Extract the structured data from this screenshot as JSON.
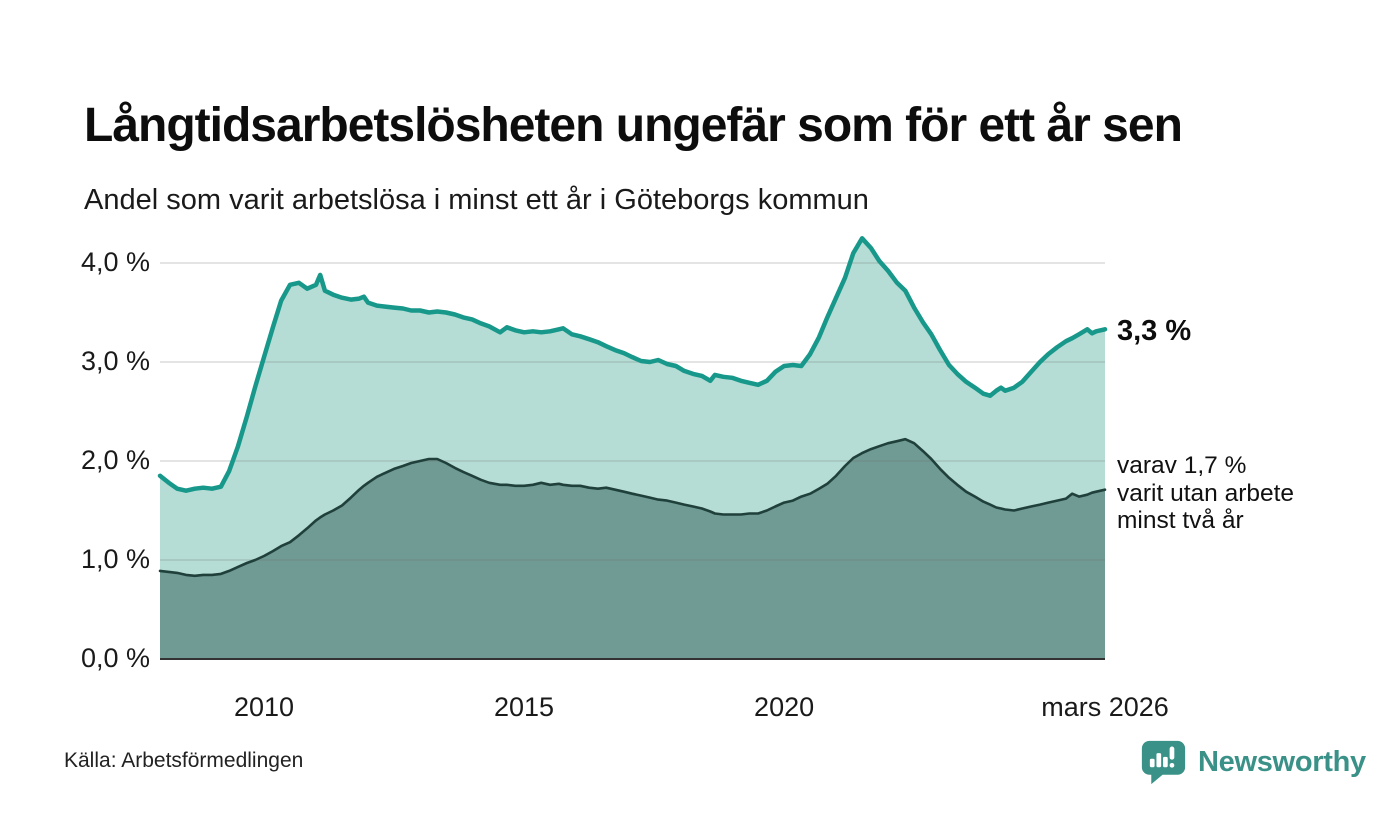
{
  "header": {
    "title": "Långtidsarbetslösheten ungefär som för ett år sen",
    "subtitle": "Andel som varit arbetslösa i minst ett år i Göteborgs kommun"
  },
  "chart_data": {
    "type": "area",
    "title": "Långtidsarbetslösheten ungefär som för ett år sen",
    "subtitle": "Andel som varit arbetslösa i minst ett år i Göteborgs kommun",
    "unit": "%",
    "grid": true,
    "legend": "none",
    "x_axis": {
      "min_year": 2008.0,
      "max_year": 2026.17,
      "ticks": [
        {
          "label": "2010",
          "year": 2010
        },
        {
          "label": "2015",
          "year": 2015
        },
        {
          "label": "2020",
          "year": 2020
        },
        {
          "label": "mars 2026",
          "year": 2026.17
        }
      ]
    },
    "y_axis": {
      "ylim": [
        0,
        4.4
      ],
      "ticks": [
        {
          "label": "0,0 %",
          "value": 0
        },
        {
          "label": "1,0 %",
          "value": 1
        },
        {
          "label": "2,0 %",
          "value": 2
        },
        {
          "label": "3,0 %",
          "value": 3
        },
        {
          "label": "4,0 %",
          "value": 4
        }
      ]
    },
    "series": [
      {
        "id": "arbetslosa-minst-ett-ar",
        "value_index": 1,
        "line_color": "#17988a",
        "fill_color": "#b5dcd5",
        "latest_value": "3,3 %"
      },
      {
        "id": "arbetslosa-minst-tva-ar",
        "value_index": 2,
        "line_color": "#20403c",
        "fill_color": "#6f9b94",
        "latest_value": "1,7 %"
      }
    ],
    "gridline_color": "rgba(110,110,110,0.25)",
    "baseline_color": "#333333",
    "points": [
      [
        2008.0,
        1.85,
        0.89
      ],
      [
        2008.17,
        1.78,
        0.88
      ],
      [
        2008.33,
        1.72,
        0.87
      ],
      [
        2008.5,
        1.7,
        0.85
      ],
      [
        2008.67,
        1.72,
        0.84
      ],
      [
        2008.83,
        1.73,
        0.85
      ],
      [
        2009.0,
        1.72,
        0.85
      ],
      [
        2009.17,
        1.74,
        0.86
      ],
      [
        2009.33,
        1.9,
        0.89
      ],
      [
        2009.5,
        2.15,
        0.93
      ],
      [
        2009.67,
        2.45,
        0.97
      ],
      [
        2009.83,
        2.75,
        1.0
      ],
      [
        2010.0,
        3.05,
        1.04
      ],
      [
        2010.17,
        3.35,
        1.09
      ],
      [
        2010.33,
        3.62,
        1.14
      ],
      [
        2010.5,
        3.78,
        1.18
      ],
      [
        2010.67,
        3.8,
        1.25
      ],
      [
        2010.83,
        3.74,
        1.32
      ],
      [
        2011.0,
        3.78,
        1.4
      ],
      [
        2011.08,
        3.88,
        1.43
      ],
      [
        2011.17,
        3.72,
        1.46
      ],
      [
        2011.33,
        3.68,
        1.5
      ],
      [
        2011.5,
        3.65,
        1.55
      ],
      [
        2011.67,
        3.63,
        1.63
      ],
      [
        2011.83,
        3.64,
        1.71
      ],
      [
        2011.92,
        3.66,
        1.75
      ],
      [
        2012.0,
        3.6,
        1.78
      ],
      [
        2012.17,
        3.57,
        1.84
      ],
      [
        2012.33,
        3.56,
        1.88
      ],
      [
        2012.5,
        3.55,
        1.92
      ],
      [
        2012.67,
        3.54,
        1.95
      ],
      [
        2012.83,
        3.52,
        1.98
      ],
      [
        2013.0,
        3.52,
        2.0
      ],
      [
        2013.17,
        3.5,
        2.02
      ],
      [
        2013.33,
        3.51,
        2.02
      ],
      [
        2013.5,
        3.5,
        1.98
      ],
      [
        2013.67,
        3.48,
        1.93
      ],
      [
        2013.83,
        3.45,
        1.89
      ],
      [
        2014.0,
        3.43,
        1.85
      ],
      [
        2014.17,
        3.39,
        1.81
      ],
      [
        2014.33,
        3.36,
        1.78
      ],
      [
        2014.54,
        3.3,
        1.76
      ],
      [
        2014.67,
        3.35,
        1.76
      ],
      [
        2014.83,
        3.32,
        1.75
      ],
      [
        2015.0,
        3.3,
        1.75
      ],
      [
        2015.17,
        3.31,
        1.76
      ],
      [
        2015.33,
        3.3,
        1.78
      ],
      [
        2015.5,
        3.31,
        1.76
      ],
      [
        2015.67,
        3.33,
        1.77
      ],
      [
        2015.75,
        3.34,
        1.76
      ],
      [
        2015.92,
        3.28,
        1.75
      ],
      [
        2016.08,
        3.26,
        1.75
      ],
      [
        2016.25,
        3.23,
        1.73
      ],
      [
        2016.42,
        3.2,
        1.72
      ],
      [
        2016.58,
        3.16,
        1.73
      ],
      [
        2016.75,
        3.12,
        1.71
      ],
      [
        2016.92,
        3.09,
        1.69
      ],
      [
        2017.08,
        3.05,
        1.67
      ],
      [
        2017.25,
        3.01,
        1.65
      ],
      [
        2017.42,
        3.0,
        1.63
      ],
      [
        2017.58,
        3.02,
        1.61
      ],
      [
        2017.75,
        2.98,
        1.6
      ],
      [
        2017.92,
        2.96,
        1.58
      ],
      [
        2018.08,
        2.91,
        1.56
      ],
      [
        2018.25,
        2.88,
        1.54
      ],
      [
        2018.42,
        2.86,
        1.52
      ],
      [
        2018.58,
        2.81,
        1.49
      ],
      [
        2018.67,
        2.87,
        1.47
      ],
      [
        2018.83,
        2.85,
        1.46
      ],
      [
        2019.0,
        2.84,
        1.46
      ],
      [
        2019.17,
        2.81,
        1.46
      ],
      [
        2019.33,
        2.79,
        1.47
      ],
      [
        2019.5,
        2.77,
        1.47
      ],
      [
        2019.67,
        2.81,
        1.5
      ],
      [
        2019.83,
        2.9,
        1.54
      ],
      [
        2020.0,
        2.96,
        1.58
      ],
      [
        2020.17,
        2.97,
        1.6
      ],
      [
        2020.33,
        2.96,
        1.64
      ],
      [
        2020.5,
        3.08,
        1.67
      ],
      [
        2020.67,
        3.25,
        1.72
      ],
      [
        2020.83,
        3.45,
        1.77
      ],
      [
        2021.0,
        3.65,
        1.85
      ],
      [
        2021.17,
        3.85,
        1.95
      ],
      [
        2021.33,
        4.1,
        2.03
      ],
      [
        2021.5,
        4.25,
        2.08
      ],
      [
        2021.67,
        4.15,
        2.12
      ],
      [
        2021.83,
        4.02,
        2.15
      ],
      [
        2022.0,
        3.92,
        2.18
      ],
      [
        2022.17,
        3.8,
        2.2
      ],
      [
        2022.33,
        3.72,
        2.22
      ],
      [
        2022.5,
        3.55,
        2.18
      ],
      [
        2022.67,
        3.4,
        2.1
      ],
      [
        2022.83,
        3.28,
        2.02
      ],
      [
        2023.0,
        3.12,
        1.92
      ],
      [
        2023.17,
        2.97,
        1.83
      ],
      [
        2023.33,
        2.88,
        1.76
      ],
      [
        2023.5,
        2.8,
        1.69
      ],
      [
        2023.67,
        2.74,
        1.64
      ],
      [
        2023.83,
        2.68,
        1.59
      ],
      [
        2023.96,
        2.66,
        1.56
      ],
      [
        2024.08,
        2.71,
        1.53
      ],
      [
        2024.17,
        2.74,
        1.52
      ],
      [
        2024.25,
        2.71,
        1.51
      ],
      [
        2024.42,
        2.74,
        1.5
      ],
      [
        2024.58,
        2.8,
        1.52
      ],
      [
        2024.75,
        2.9,
        1.54
      ],
      [
        2024.92,
        3.0,
        1.56
      ],
      [
        2025.08,
        3.08,
        1.58
      ],
      [
        2025.25,
        3.15,
        1.6
      ],
      [
        2025.42,
        3.21,
        1.62
      ],
      [
        2025.54,
        3.24,
        1.67
      ],
      [
        2025.67,
        3.28,
        1.64
      ],
      [
        2025.83,
        3.33,
        1.66
      ],
      [
        2025.92,
        3.29,
        1.68
      ],
      [
        2026.0,
        3.31,
        1.69
      ],
      [
        2026.17,
        3.33,
        1.71
      ]
    ]
  },
  "annotations": {
    "latest_total": "3,3 %",
    "two_year_note_lines": [
      "varav 1,7 %",
      "varit utan arbete",
      "minst två år"
    ]
  },
  "footer": {
    "source": "Källa: Arbetsförmedlingen",
    "brand": "Newsworthy",
    "brand_color": "#3a9187"
  }
}
